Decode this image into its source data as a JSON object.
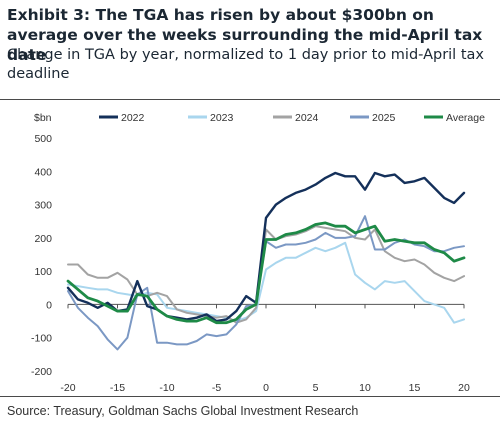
{
  "title": "Exhibit 3: The TGA has risen by about $300bn on average over the weeks surrounding the mid-April tax date",
  "subtitle": "Change in TGA by year, normalized to 1 day prior to mid-April tax deadline",
  "source": "Source: Treasury, Goldman Sachs Global Investment Research",
  "chart_data": {
    "type": "line",
    "ylabel": "$bn",
    "xlabel": "",
    "xlim": [
      -20,
      20
    ],
    "ylim": [
      -200,
      500
    ],
    "x_ticks": [
      -20,
      -15,
      -10,
      -5,
      0,
      5,
      10,
      15,
      20
    ],
    "y_ticks": [
      -200,
      -100,
      0,
      100,
      200,
      300,
      400,
      500
    ],
    "legend_position": "top",
    "x": [
      -20,
      -19,
      -18,
      -17,
      -16,
      -15,
      -14,
      -13,
      -12,
      -11,
      -10,
      -9,
      -8,
      -7,
      -6,
      -5,
      -4,
      -3,
      -2,
      -1,
      0,
      1,
      2,
      3,
      4,
      5,
      6,
      7,
      8,
      9,
      10,
      11,
      12,
      13,
      14,
      15,
      16,
      17,
      18,
      19,
      20
    ],
    "series": [
      {
        "name": "2022",
        "color": "#14305a",
        "width": 2.4,
        "values": [
          50,
          15,
          5,
          -10,
          5,
          -20,
          -15,
          70,
          -5,
          -15,
          -35,
          -40,
          -45,
          -40,
          -30,
          -50,
          -45,
          -20,
          25,
          5,
          260,
          300,
          320,
          335,
          345,
          360,
          380,
          395,
          385,
          385,
          345,
          395,
          385,
          390,
          365,
          370,
          380,
          350,
          320,
          305,
          335
        ]
      },
      {
        "name": "2023",
        "color": "#a9d6ee",
        "width": 2.0,
        "values": [
          60,
          55,
          50,
          45,
          45,
          35,
          30,
          25,
          35,
          30,
          -10,
          -15,
          -20,
          -25,
          -30,
          -35,
          -40,
          -50,
          -40,
          -20,
          105,
          125,
          140,
          140,
          155,
          170,
          160,
          170,
          185,
          90,
          65,
          45,
          70,
          65,
          70,
          40,
          10,
          0,
          -10,
          -55,
          -45
        ]
      },
      {
        "name": "2024",
        "color": "#a3a3a3",
        "width": 2.0,
        "values": [
          120,
          120,
          90,
          80,
          80,
          95,
          75,
          30,
          25,
          35,
          25,
          -15,
          -25,
          -30,
          -35,
          -40,
          -35,
          -55,
          -45,
          -10,
          225,
          195,
          205,
          210,
          220,
          235,
          230,
          225,
          220,
          200,
          195,
          225,
          160,
          140,
          130,
          135,
          120,
          95,
          80,
          70,
          85
        ]
      },
      {
        "name": "2025",
        "color": "#7b98c4",
        "width": 2.0,
        "values": [
          40,
          -10,
          -40,
          -65,
          -105,
          -135,
          -100,
          30,
          50,
          -115,
          -115,
          -120,
          -120,
          -110,
          -90,
          -95,
          -90,
          -60,
          -5,
          0,
          190,
          170,
          180,
          180,
          185,
          195,
          215,
          200,
          200,
          205,
          265,
          165,
          165,
          185,
          195,
          180,
          175,
          160,
          160,
          170,
          175
        ]
      },
      {
        "name": "Average",
        "color": "#1e8a47",
        "width": 2.8,
        "values": [
          70,
          45,
          20,
          10,
          -5,
          -20,
          -20,
          30,
          25,
          -15,
          -35,
          -45,
          -50,
          -50,
          -40,
          -55,
          -55,
          -45,
          -15,
          0,
          195,
          195,
          210,
          215,
          225,
          240,
          245,
          235,
          235,
          215,
          225,
          235,
          190,
          195,
          190,
          185,
          185,
          165,
          155,
          130,
          140
        ]
      }
    ]
  }
}
